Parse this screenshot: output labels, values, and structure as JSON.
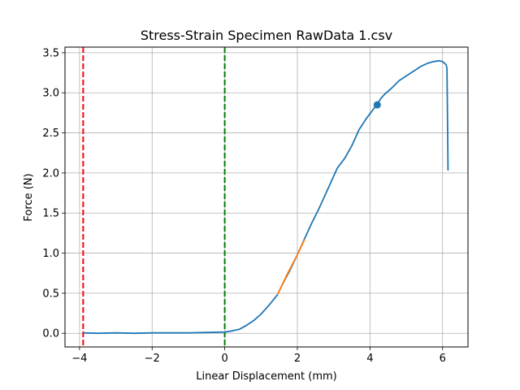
{
  "chart_data": {
    "type": "line",
    "title": "Stress-Strain Specimen RawData 1.csv",
    "xlabel": "Linear Displacement (mm)",
    "ylabel": "Force (N)",
    "xlim": [
      -4.4,
      6.7
    ],
    "ylim": [
      -0.17,
      3.57
    ],
    "grid": true,
    "x_ticks": [
      -4,
      -2,
      0,
      2,
      4,
      6
    ],
    "x_tick_labels": [
      "−4",
      "−2",
      "0",
      "2",
      "4",
      "6"
    ],
    "y_ticks": [
      0.0,
      0.5,
      1.0,
      1.5,
      2.0,
      2.5,
      3.0,
      3.5
    ],
    "y_tick_labels": [
      "0.0",
      "0.5",
      "1.0",
      "1.5",
      "2.0",
      "2.5",
      "3.0",
      "3.5"
    ],
    "series": [
      {
        "color": "#1f77b4",
        "x": [
          -3.9,
          -3.5,
          -3.0,
          -2.5,
          -2.0,
          -1.5,
          -1.0,
          -0.5,
          0.0,
          0.2,
          0.4,
          0.6,
          0.8,
          1.0,
          1.2,
          1.45,
          1.6,
          1.8,
          2.0,
          2.2,
          2.4,
          2.6,
          2.8,
          3.0,
          3.1,
          3.3,
          3.5,
          3.6,
          3.7,
          3.8,
          3.9,
          4.0,
          4.1,
          4.2,
          4.3,
          4.4,
          4.6,
          4.8,
          5.0,
          5.2,
          5.4,
          5.6,
          5.75,
          5.9,
          6.0,
          6.1,
          6.12,
          6.14,
          6.15
        ],
        "y": [
          0.005,
          0.0,
          0.005,
          0.0,
          0.005,
          0.005,
          0.005,
          0.01,
          0.015,
          0.03,
          0.05,
          0.1,
          0.16,
          0.24,
          0.34,
          0.48,
          0.62,
          0.79,
          0.98,
          1.18,
          1.38,
          1.56,
          1.76,
          1.96,
          2.06,
          2.18,
          2.34,
          2.44,
          2.54,
          2.61,
          2.68,
          2.74,
          2.8,
          2.86,
          2.93,
          2.98,
          3.06,
          3.15,
          3.21,
          3.27,
          3.33,
          3.37,
          3.39,
          3.4,
          3.39,
          3.35,
          3.3,
          2.5,
          2.03
        ]
      },
      {
        "color": "#ff7f0e",
        "x": [
          1.45,
          1.7,
          2.0,
          2.2
        ],
        "y": [
          0.48,
          0.72,
          0.98,
          1.17
        ]
      }
    ],
    "marker_point": {
      "x": 4.2,
      "y": 2.85,
      "color": "#1f77b4"
    },
    "vlines": [
      {
        "x": -3.9,
        "color": "#ff0000",
        "style": "dashed"
      },
      {
        "x": 0.0,
        "color": "#008000",
        "style": "dashed"
      }
    ]
  }
}
